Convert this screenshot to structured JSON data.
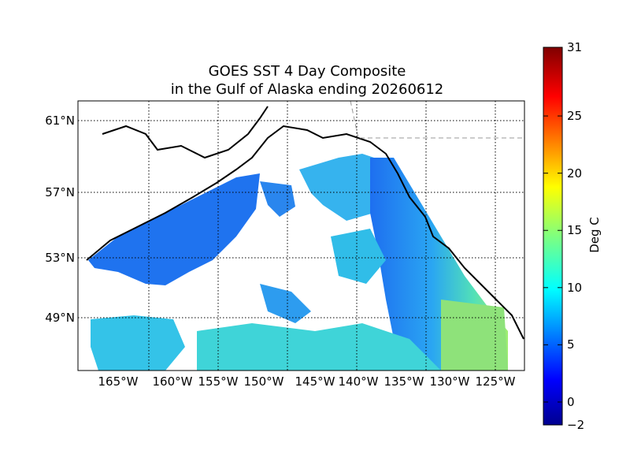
{
  "title_line1": "GOES SST 4 Day Composite",
  "title_line2": "in the Gulf of Alaska ending 20260612",
  "lat_labels": [
    "61°N",
    "57°N",
    "53°N",
    "49°N"
  ],
  "lon_labels": [
    "165°W",
    "160°W",
    "155°W",
    "150°W",
    "145°W",
    "140°W",
    "135°W",
    "130°W",
    "125°W"
  ],
  "colorbar": {
    "label": "Deg C",
    "min": -2,
    "max": 31,
    "ticks": [
      "31",
      "25",
      "20",
      "15",
      "10",
      "5",
      "0",
      "−2"
    ],
    "tick_values": [
      31,
      25,
      20,
      15,
      10,
      5,
      0,
      -2
    ]
  },
  "map": {
    "region": "Gulf of Alaska",
    "date": "20260612",
    "gridlines": true,
    "colors": {
      "cold": "#1e78f0",
      "mid": "#28c8e6",
      "warm": "#96ee7a",
      "land_outline": "#000000"
    }
  }
}
